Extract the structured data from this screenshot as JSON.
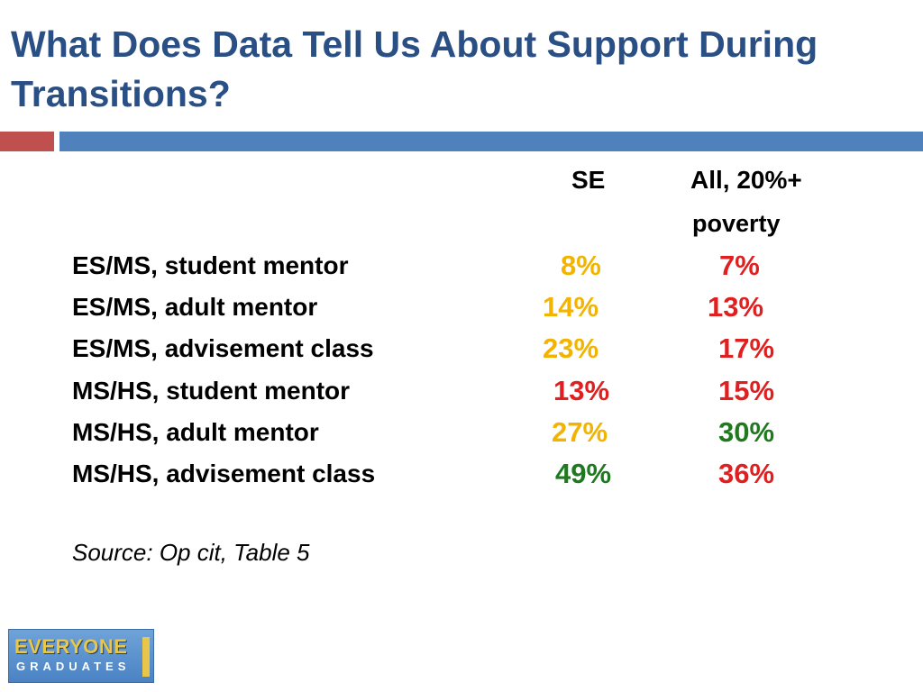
{
  "title": "What Does Data Tell Us About Support During Transitions?",
  "columns": {
    "se": "SE",
    "all_line1": "All, 20%+",
    "all_line2": "poverty"
  },
  "rows": [
    {
      "label": "ES/MS, student mentor",
      "se": "8%",
      "all": "7%",
      "se_color": "#f2b400",
      "all_color": "#e02020"
    },
    {
      "label": "ES/MS, adult mentor",
      "se": "14%",
      "all": "13%",
      "se_color": "#f2b400",
      "all_color": "#e02020"
    },
    {
      "label": "ES/MS, advisement class",
      "se": "23%",
      "all": "17%",
      "se_color": "#f2b400",
      "all_color": "#e02020"
    },
    {
      "label": "MS/HS, student mentor",
      "se": "13%",
      "all": "15%",
      "se_color": "#e02020",
      "all_color": "#e02020"
    },
    {
      "label": "MS/HS, adult mentor",
      "se": "27%",
      "all": "30%",
      "se_color": "#f2b400",
      "all_color": "#1f7a1f"
    },
    {
      "label": "MS/HS, advisement class",
      "se": "49%",
      "all": "36%",
      "se_color": "#1f7a1f",
      "all_color": "#e02020"
    }
  ],
  "source": "Source: Op cit, Table 5",
  "logo": {
    "top": "EVERYONE",
    "bottom": "GRADUATES"
  },
  "colors": {
    "title": "#2a4f85",
    "accent_red": "#c0504d",
    "accent_blue": "#4f81bd"
  }
}
